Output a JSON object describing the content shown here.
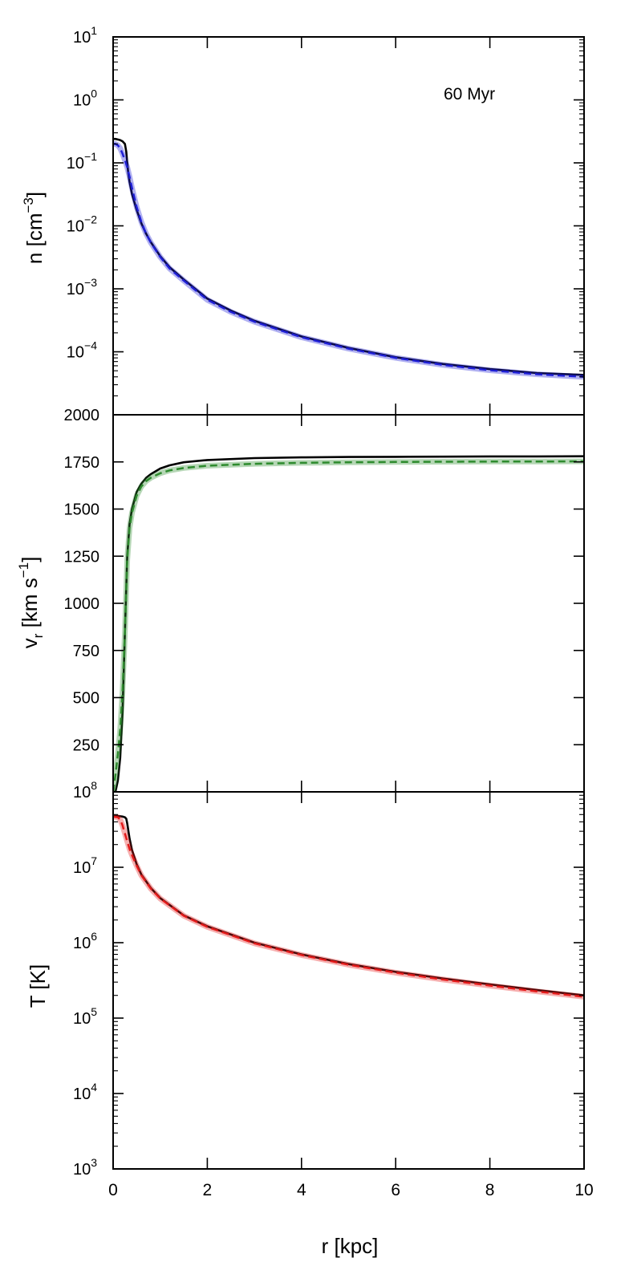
{
  "chart_data": [
    {
      "type": "line",
      "panel": "density",
      "ylabel_main": "n [cm",
      "ylabel_sup": "−3",
      "ylabel_close": "]",
      "annotation": "60 Myr",
      "y_scale": "log",
      "ylim_exp": [
        -5,
        1
      ],
      "y_tick_exps": [
        "−4",
        "−3",
        "−2",
        "−1",
        "0",
        "1"
      ],
      "xlim": [
        0,
        10
      ],
      "series": [
        {
          "style": "black-solid",
          "color": "#000000",
          "x": [
            0.0,
            0.05,
            0.1,
            0.15,
            0.2,
            0.25,
            0.28,
            0.3,
            0.32,
            0.35,
            0.4,
            0.5,
            0.6,
            0.7,
            0.8,
            1.0,
            1.2,
            1.5,
            2.0,
            2.5,
            3.0,
            4.0,
            5.0,
            6.0,
            7.0,
            8.0,
            9.0,
            10.0
          ],
          "y": [
            0.24,
            0.24,
            0.235,
            0.23,
            0.22,
            0.2,
            0.15,
            0.1,
            0.07,
            0.05,
            0.032,
            0.018,
            0.011,
            0.0075,
            0.0055,
            0.0033,
            0.0022,
            0.0014,
            0.0007,
            0.00045,
            0.00031,
            0.000175,
            0.000115,
            8.2e-05,
            6.4e-05,
            5.3e-05,
            4.6e-05,
            4.3e-05
          ]
        },
        {
          "style": "blue-dashed",
          "color": "#1f1fd6",
          "x": [
            0.0,
            0.05,
            0.1,
            0.15,
            0.2,
            0.25,
            0.3,
            0.35,
            0.4,
            0.5,
            0.6,
            0.7,
            0.8,
            1.0,
            1.2,
            1.5,
            2.0,
            2.5,
            3.0,
            4.0,
            5.0,
            6.0,
            7.0,
            8.0,
            9.0,
            10.0
          ],
          "y": [
            0.2,
            0.2,
            0.19,
            0.17,
            0.14,
            0.11,
            0.085,
            0.06,
            0.04,
            0.02,
            0.0115,
            0.0075,
            0.0054,
            0.0032,
            0.0021,
            0.00135,
            0.00067,
            0.00043,
            0.0003,
            0.00017,
            0.000112,
            8e-05,
            6.2e-05,
            5.1e-05,
            4.4e-05,
            4e-05
          ]
        }
      ]
    },
    {
      "type": "line",
      "panel": "velocity",
      "ylabel_main": "v",
      "ylabel_sub": "r",
      "ylabel_rest": " [km s",
      "ylabel_sup": "−1",
      "ylabel_close": "]",
      "ylim": [
        0,
        2000
      ],
      "y_ticks": [
        250,
        500,
        750,
        1000,
        1250,
        1500,
        1750,
        2000
      ],
      "xlim": [
        0,
        10
      ],
      "series": [
        {
          "style": "black-solid",
          "color": "#000000",
          "x": [
            0.0,
            0.05,
            0.1,
            0.15,
            0.2,
            0.25,
            0.3,
            0.35,
            0.4,
            0.5,
            0.6,
            0.7,
            0.8,
            1.0,
            1.2,
            1.5,
            2.0,
            3.0,
            4.0,
            5.0,
            6.0,
            7.0,
            8.0,
            9.0,
            10.0
          ],
          "y": [
            0,
            0,
            60,
            180,
            420,
            850,
            1250,
            1420,
            1500,
            1590,
            1635,
            1665,
            1685,
            1715,
            1732,
            1748,
            1760,
            1770,
            1774,
            1776,
            1777,
            1778,
            1779,
            1779,
            1780
          ]
        },
        {
          "style": "green-dashed",
          "color": "#2e8b2e",
          "x": [
            0.0,
            0.05,
            0.1,
            0.15,
            0.2,
            0.25,
            0.3,
            0.35,
            0.4,
            0.5,
            0.6,
            0.7,
            0.8,
            1.0,
            1.2,
            1.5,
            2.0,
            3.0,
            4.0,
            5.0,
            6.0,
            7.0,
            8.0,
            9.0,
            10.0
          ],
          "y": [
            0,
            90,
            200,
            330,
            530,
            850,
            1230,
            1400,
            1480,
            1570,
            1620,
            1648,
            1666,
            1690,
            1705,
            1718,
            1730,
            1740,
            1745,
            1748,
            1750,
            1751,
            1752,
            1752,
            1753
          ]
        }
      ]
    },
    {
      "type": "line",
      "panel": "temperature",
      "ylabel_main": "T [K]",
      "y_scale": "log",
      "ylim_exp": [
        3,
        8
      ],
      "y_tick_exps": [
        "3",
        "4",
        "5",
        "6",
        "7",
        "8"
      ],
      "xlim": [
        0,
        10
      ],
      "xlabel": "r [kpc]",
      "x_ticks": [
        "0",
        "2",
        "4",
        "6",
        "8",
        "10"
      ],
      "series": [
        {
          "style": "black-solid",
          "color": "#000000",
          "x": [
            0.0,
            0.1,
            0.2,
            0.25,
            0.28,
            0.3,
            0.35,
            0.4,
            0.5,
            0.6,
            0.8,
            1.0,
            1.5,
            2.0,
            3.0,
            4.0,
            5.0,
            6.0,
            7.0,
            8.0,
            9.0,
            10.0
          ],
          "y": [
            48000000,
            48000000,
            47000000,
            46000000,
            44000000,
            38000000,
            24000000,
            17000000,
            11000000,
            8000000,
            5300000,
            3900000,
            2300000,
            1650000,
            1000000,
            700000,
            520000,
            410000,
            335000,
            280000,
            235000,
            200000
          ]
        },
        {
          "style": "red-dashed",
          "color": "#e41a1a",
          "x": [
            0.0,
            0.1,
            0.15,
            0.2,
            0.25,
            0.3,
            0.35,
            0.4,
            0.5,
            0.6,
            0.8,
            1.0,
            1.5,
            2.0,
            3.0,
            4.0,
            5.0,
            6.0,
            7.0,
            8.0,
            9.0,
            10.0
          ],
          "y": [
            47000000,
            46000000,
            43000000,
            36000000,
            28000000,
            22000000,
            17500000,
            14500000,
            10500000,
            7800000,
            5200000,
            3850000,
            2270000,
            1620000,
            980000,
            685000,
            510000,
            400000,
            325000,
            270000,
            226000,
            192000
          ]
        }
      ]
    }
  ]
}
